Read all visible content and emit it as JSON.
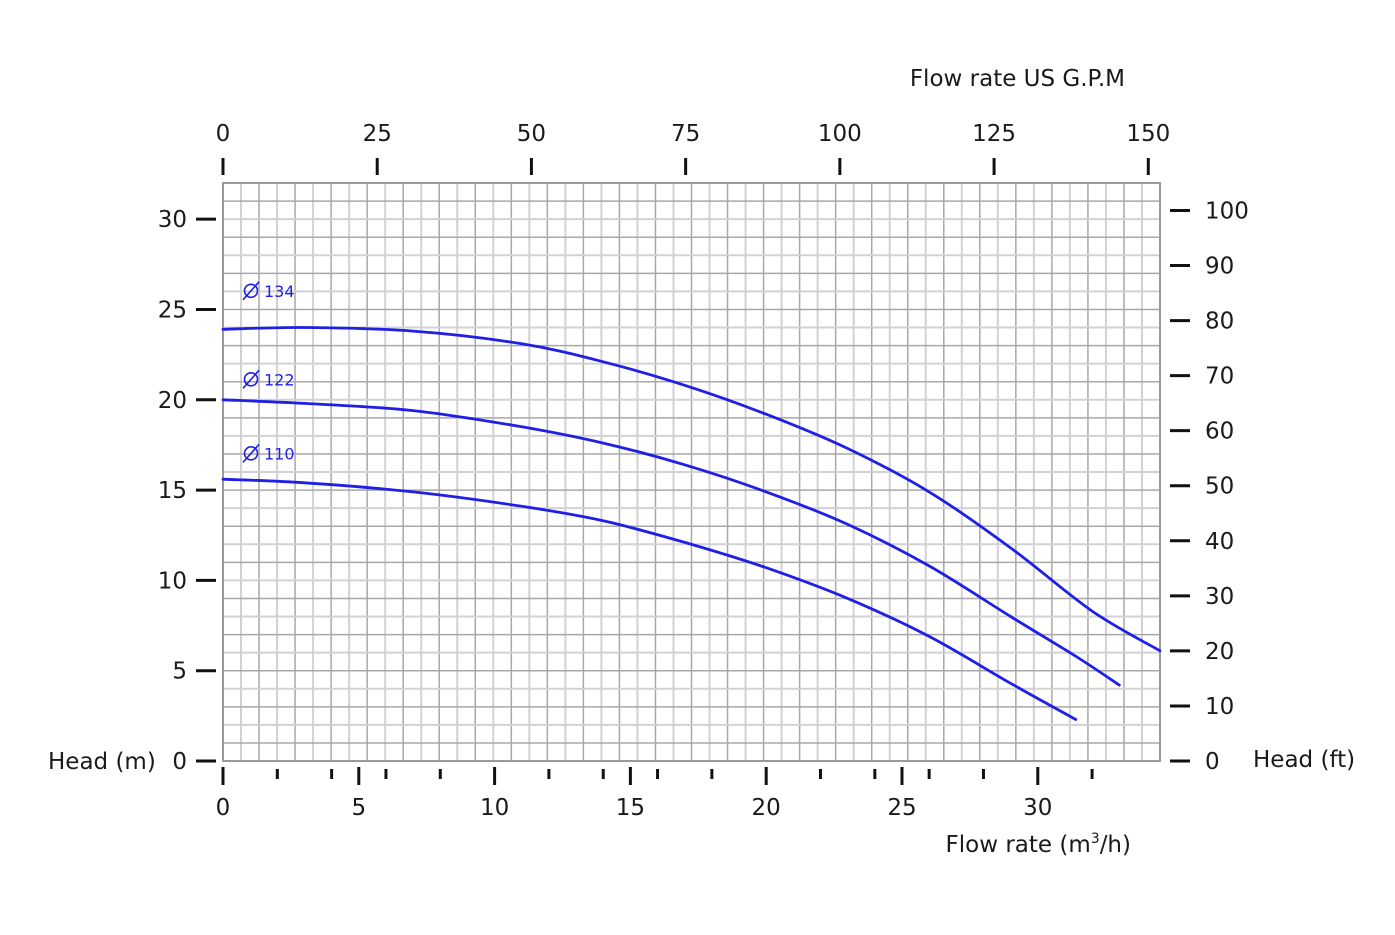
{
  "chart_data": {
    "type": "line",
    "title": "",
    "xlabel": "Flow rate  (m³/h)",
    "xlabel_base": "Flow rate  (m",
    "xlabel_sup": "3",
    "xlabel_tail": "/h)",
    "x2label": "Flow rate US  G.P.M",
    "ylabel": "Head (m)",
    "y2label": "Head (ft)",
    "xlim": [
      0,
      34.5
    ],
    "ylim": [
      0,
      32
    ],
    "x_ticks": [
      "0",
      "5",
      "10",
      "15",
      "20",
      "25",
      "30"
    ],
    "x_tick_values": [
      0,
      5,
      10,
      15,
      20,
      25,
      30
    ],
    "x_minor_tick_values": [
      2,
      4,
      6,
      8,
      12,
      14,
      16,
      18,
      22,
      24,
      26,
      28,
      32
    ],
    "y_ticks": [
      "0",
      "5",
      "10",
      "15",
      "20",
      "25",
      "30"
    ],
    "y_tick_values": [
      0,
      5,
      10,
      15,
      20,
      25,
      30
    ],
    "x2_ticks": [
      "0",
      "25",
      "50",
      "75",
      "100",
      "125",
      "150"
    ],
    "x2_tick_values": [
      0,
      25,
      50,
      75,
      100,
      125,
      150
    ],
    "y2_ticks": [
      "0",
      "10",
      "20",
      "30",
      "40",
      "50",
      "60",
      "70",
      "80",
      "90",
      "100"
    ],
    "y2_tick_values": [
      0,
      10,
      20,
      30,
      40,
      50,
      60,
      70,
      80,
      90,
      100
    ],
    "grid": true,
    "curve_color": "#1f1fe6",
    "series": [
      {
        "name": "134",
        "x": [
          0,
          3,
          7,
          11,
          14,
          17,
          20,
          23,
          26,
          29,
          32,
          34.5
        ],
        "y": [
          23.9,
          24.0,
          23.8,
          23.1,
          22.1,
          20.8,
          19.2,
          17.3,
          14.9,
          11.8,
          8.3,
          6.1
        ]
      },
      {
        "name": "122",
        "x": [
          0,
          3,
          7,
          11,
          14,
          17,
          20,
          23,
          26,
          29,
          31.5,
          33
        ],
        "y": [
          20.0,
          19.8,
          19.4,
          18.5,
          17.6,
          16.4,
          14.9,
          13.1,
          10.8,
          8.0,
          5.7,
          4.2
        ]
      },
      {
        "name": "110",
        "x": [
          0,
          3,
          7,
          11,
          14,
          17,
          20,
          23,
          26,
          29,
          31.4
        ],
        "y": [
          15.6,
          15.4,
          14.9,
          14.1,
          13.3,
          12.1,
          10.7,
          9.0,
          6.9,
          4.3,
          2.3
        ]
      }
    ],
    "series_labels": [
      {
        "text": "134",
        "x": 0.7,
        "y": 25.7
      },
      {
        "text": "122",
        "x": 0.7,
        "y": 20.8
      },
      {
        "text": "110",
        "x": 0.7,
        "y": 16.7
      }
    ]
  }
}
